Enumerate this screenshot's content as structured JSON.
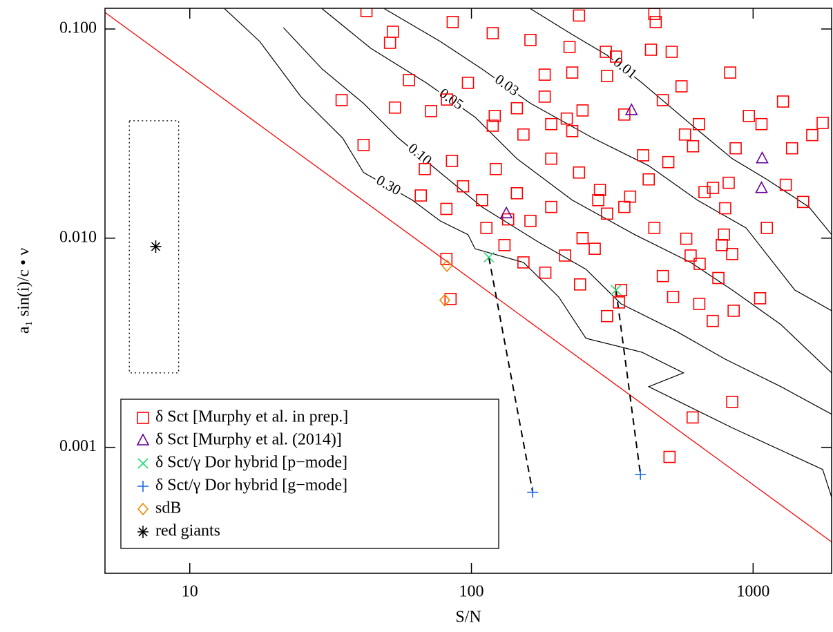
{
  "chart_data": {
    "type": "scatter",
    "xlabel": "S/N",
    "ylabel": "a₁ sin(i)/c • ν",
    "xscale": "log",
    "yscale": "log",
    "xlim": [
      5,
      1900
    ],
    "ylim": [
      0.00025,
      0.1256
    ],
    "xticks": [
      10,
      100,
      1000
    ],
    "yticks": [
      {
        "value": 0.1,
        "label": "0.100"
      },
      {
        "value": 0.01,
        "label": "0.010"
      },
      {
        "value": 0.001,
        "label": "0.001"
      }
    ],
    "legend": "lower left",
    "series": [
      {
        "name": "δ Sct [Murphy et al. in prep.]",
        "color": "#ff0000",
        "marker": "square",
        "x": [
          42.4,
          446,
          241,
          85.8,
          451,
          52.6,
          34.6,
          41.4,
          51.4,
          119,
          162,
          223,
          300,
          326,
          434,
          514,
          829,
          1277,
          1766,
          1622,
          1375,
          1306,
          1506,
          1071,
          867,
          819,
          796,
          672,
          600,
          520,
          644,
          719,
          610,
          505,
          1059,
          642,
          573,
          500,
          426,
          366,
          303,
          248,
          215,
          183,
          153,
          131,
          113,
          93.4,
          85.3,
          68.3,
          66.1,
          81.5,
          121,
          153,
          192,
          241,
          286,
          349,
          407,
          478,
          557,
          612,
          721,
          788,
          966,
          843,
          1119,
          446,
          274,
          243,
          340,
          334,
          303,
          282,
          135,
          182,
          228,
          303,
          218,
          182,
          145,
          119,
          97.2,
          81.9,
          71.9,
          60.0,
          53.5,
          349,
          248,
          753,
          646,
          853,
          843,
          192,
          228,
          145,
          774,
          162,
          122,
          109,
          84.3,
          81.5,
          192,
          478,
          579
        ],
        "values": [
          0.122,
          0.118,
          0.116,
          0.108,
          0.108,
          0.097,
          0.0457,
          0.0279,
          0.0859,
          0.0955,
          0.0886,
          0.0821,
          0.0778,
          0.0738,
          0.0796,
          0.0778,
          0.0619,
          0.045,
          0.0356,
          0.0311,
          0.0269,
          0.018,
          0.0149,
          0.0351,
          0.0269,
          0.0184,
          0.0139,
          0.0166,
          0.00826,
          0.00524,
          0.00485,
          0.00402,
          0.00139,
          0.0009,
          0.00516,
          0.0351,
          0.0313,
          0.0231,
          0.0191,
          0.0158,
          0.0131,
          0.01,
          0.00826,
          0.00684,
          0.00766,
          0.00927,
          0.0112,
          0.0177,
          0.0234,
          0.0214,
          0.016,
          0.0138,
          0.0384,
          0.0313,
          0.024,
          0.0206,
          0.017,
          0.0141,
          0.0249,
          0.0457,
          0.0532,
          0.0275,
          0.0174,
          0.0104,
          0.0384,
          0.0084,
          0.0112,
          0.0112,
          0.0089,
          0.00601,
          0.00565,
          0.00493,
          0.00424,
          0.0152,
          0.0123,
          0.0475,
          0.0619,
          0.0596,
          0.0373,
          0.0605,
          0.0418,
          0.0345,
          0.0553,
          0.046,
          0.0405,
          0.057,
          0.0421,
          0.039,
          0.0408,
          0.00645,
          0.00754,
          0.0045,
          0.00165,
          0.0351,
          0.0325,
          0.0164,
          0.00927,
          0.0121,
          0.0214,
          0.0152,
          0.00512,
          0.00796,
          0.0141,
          0.00659,
          0.00994
        ]
      },
      {
        "name": "δ Sct [Murphy et al. (2014)]",
        "color": "#660099",
        "marker": "triangle",
        "x": [
          133,
          370,
          1077,
          1071
        ],
        "values": [
          0.0131,
          0.0408,
          0.024,
          0.0173
        ]
      },
      {
        "name": "δ Sct/γ Dor hybrid [p−mode]",
        "color": "#22dd77",
        "marker": "x",
        "x": [
          115.3,
          326
        ],
        "values": [
          0.0081,
          0.00565
        ]
      },
      {
        "name": "δ Sct/γ Dor hybrid [g−mode]",
        "color": "#1166ee",
        "marker": "plus",
        "x": [
          165,
          398
        ],
        "values": [
          0.00061,
          0.000743
        ]
      },
      {
        "name": "sdB",
        "color": "#ee8800",
        "marker": "diamond",
        "x": [
          81.9,
          80.4
        ],
        "values": [
          0.00738,
          0.00505
        ]
      },
      {
        "name": "red giants",
        "color": "#000000",
        "marker": "asterisk",
        "x": [
          7.57
        ],
        "values": [
          0.00912
        ]
      }
    ],
    "limit_line": {
      "color": "#ff0000",
      "x": [
        5,
        1900
      ],
      "y": [
        0.12,
        0.000353
      ]
    },
    "red_giant_box": {
      "x": [
        6.1,
        9.13
      ],
      "y": [
        0.00227,
        0.0364
      ]
    },
    "contours": [
      {
        "label": "0.30",
        "x": [
          13.3,
          17.7,
          24.8,
          34.9,
          41.4,
          61.7,
          77.4,
          97.2,
          103,
          153,
          204,
          255,
          403,
          566,
          426,
          843,
          1766,
          1900
        ],
        "y": [
          0.125,
          0.0873,
          0.0475,
          0.0301,
          0.0206,
          0.0152,
          0.0121,
          0.0104,
          0.0089,
          0.00766,
          0.00524,
          0.00332,
          0.00285,
          0.00227,
          0.00195,
          0.00124,
          0.000784,
          0.000578
        ]
      },
      {
        "label": "0.10",
        "x": [
          21.5,
          29.5,
          41.4,
          55.0,
          77.4,
          109,
          172,
          255,
          340,
          535,
          796,
          1256,
          1900
        ],
        "y": [
          0.1015,
          0.0644,
          0.0441,
          0.0301,
          0.0206,
          0.0141,
          0.00962,
          0.0071,
          0.00485,
          0.00358,
          0.00264,
          0.00195,
          0.00144
        ]
      },
      {
        "label": "0.05",
        "x": [
          29.5,
          43.9,
          69.1,
          103,
          145,
          228,
          380,
          600,
          843,
          1256,
          1900
        ],
        "y": [
          0.125,
          0.0809,
          0.0553,
          0.0379,
          0.024,
          0.0152,
          0.0104,
          0.00766,
          0.00565,
          0.00386,
          0.00227
        ]
      },
      {
        "label": "0.03",
        "x": [
          49.1,
          77.4,
          109,
          162,
          270,
          426,
          634,
          944,
          1406,
          1900
        ],
        "y": [
          0.125,
          0.0873,
          0.0644,
          0.0441,
          0.0301,
          0.0222,
          0.0152,
          0.0112,
          0.00565,
          0.0045
        ]
      },
      {
        "label": "0.01",
        "x": [
          162,
          228,
          303,
          403,
          600,
          843,
          1119,
          1578,
          1900
        ],
        "y": [
          0.125,
          0.0941,
          0.075,
          0.0553,
          0.0351,
          0.024,
          0.0191,
          0.0141,
          0.0104
        ]
      }
    ]
  }
}
